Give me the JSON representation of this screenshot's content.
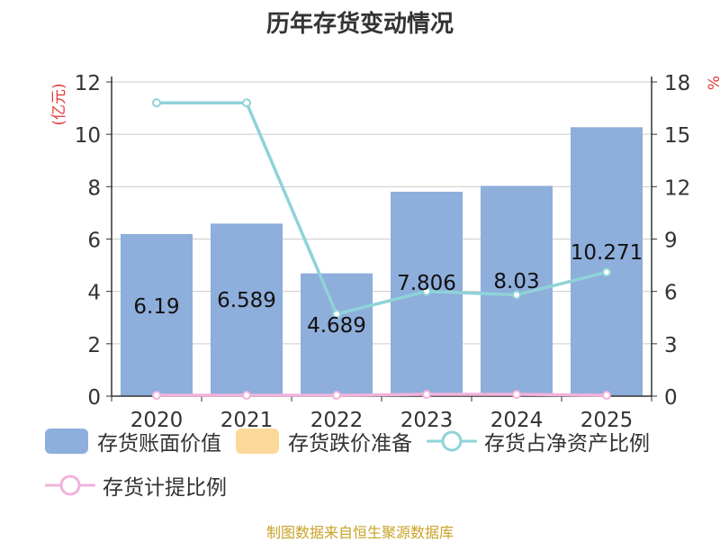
{
  "chart_data": {
    "type": "bar",
    "title": "历年存货变动情况",
    "categories": [
      "2020",
      "2021",
      "2022",
      "2023",
      "2024",
      "2025"
    ],
    "left_axis": {
      "label": "(亿元)",
      "min": 0,
      "max": 12,
      "ticks": [
        0,
        2,
        4,
        6,
        8,
        10,
        12
      ]
    },
    "right_axis": {
      "label": "%",
      "min": 0,
      "max": 18,
      "ticks": [
        0,
        3,
        6,
        9,
        12,
        15,
        18
      ]
    },
    "series": [
      {
        "name": "存货账面价值",
        "kind": "bar",
        "axis": "left",
        "color": "#8eaedb",
        "values": [
          6.19,
          6.589,
          4.689,
          7.806,
          8.03,
          10.271
        ],
        "labels": [
          "6.19",
          "6.589",
          "4.689",
          "7.806",
          "8.03",
          "10.271"
        ]
      },
      {
        "name": "存货跌价准备",
        "kind": "bar",
        "axis": "left",
        "color": "#fcd89a",
        "values": [
          0,
          0,
          0,
          0,
          0,
          0
        ]
      },
      {
        "name": "存货占净资产比例",
        "kind": "line",
        "axis": "right",
        "color": "#8ed3d8",
        "values": [
          16.8,
          16.8,
          4.7,
          6.0,
          5.8,
          7.1
        ]
      },
      {
        "name": "存货计提比例",
        "kind": "line",
        "axis": "right",
        "color": "#f0b3dc",
        "values": [
          0.05,
          0.05,
          0.05,
          0.1,
          0.1,
          0.05
        ]
      }
    ],
    "grid": true,
    "legend_position": "bottom"
  },
  "footer": {
    "source": "制图数据来自恒生聚源数据库"
  }
}
